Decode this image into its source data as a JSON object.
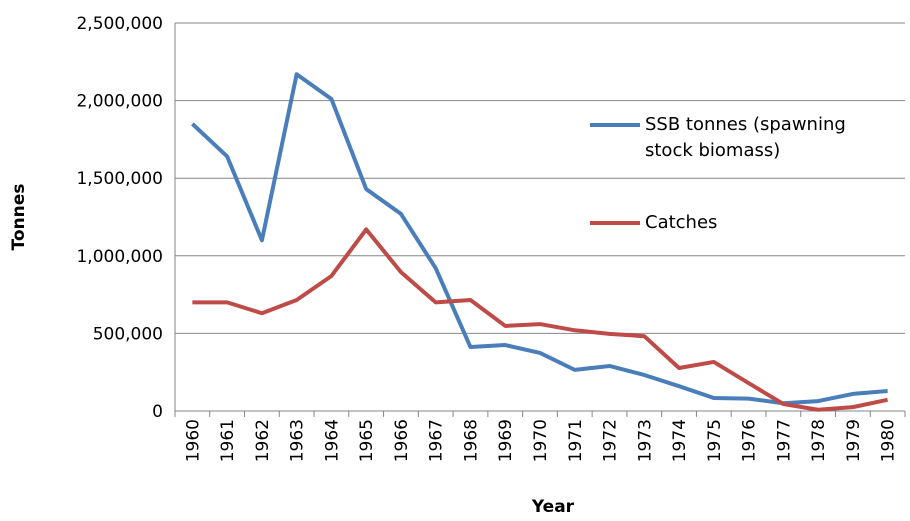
{
  "chart_data": {
    "type": "line",
    "x_label": "Year",
    "y_label": "Tonnes",
    "categories": [
      "1960",
      "1961",
      "1962",
      "1963",
      "1964",
      "1965",
      "1966",
      "1967",
      "1968",
      "1969",
      "1970",
      "1971",
      "1972",
      "1973",
      "1974",
      "1975",
      "1976",
      "1977",
      "1978",
      "1979",
      "1980"
    ],
    "series": [
      {
        "name": "SSB tonnes (spawning stock biomass)",
        "color": "#4a7ebb",
        "values": [
          1850000,
          1640000,
          1100000,
          2170000,
          2010000,
          1430000,
          1270000,
          920000,
          412000,
          425000,
          374000,
          265000,
          290000,
          232000,
          160000,
          84000,
          80000,
          50000,
          64000,
          110000,
          129000
        ]
      },
      {
        "name": "Catches",
        "color": "#be4b48",
        "values": [
          700000,
          700000,
          630000,
          715000,
          870000,
          1170000,
          895000,
          700000,
          715000,
          548000,
          560000,
          520000,
          497000,
          482000,
          277000,
          316000,
          180000,
          45000,
          8000,
          25000,
          72000
        ]
      }
    ],
    "ylim": [
      0,
      2500000
    ],
    "yticks": [
      0,
      {
        "value": 500000,
        "label": "500,000"
      },
      {
        "value": 1000000,
        "label": "1,000,000"
      },
      {
        "value": 1500000,
        "label": "1,500,000"
      },
      {
        "value": 2000000,
        "label": "2,000,000"
      },
      {
        "value": 2500000,
        "label": "2,500,000"
      }
    ],
    "grid": true,
    "legend": "right"
  }
}
